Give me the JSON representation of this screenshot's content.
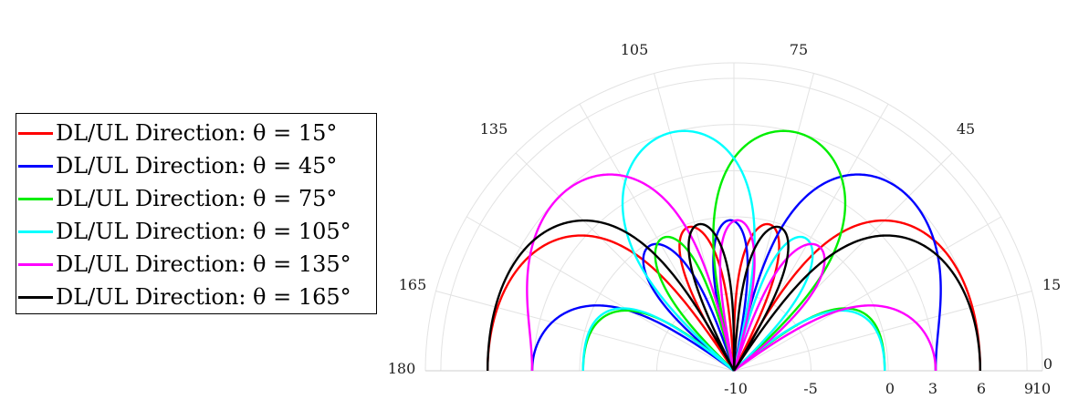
{
  "chart_data": {
    "type": "polar",
    "theta_range": [
      0,
      180
    ],
    "angle_ticks": [
      "0",
      "15",
      "45",
      "75",
      "105",
      "135",
      "165",
      "180"
    ],
    "radial_tick_labels": [
      "-10",
      "-5",
      "0",
      "3",
      "6",
      "9",
      "10"
    ],
    "radial_range": [
      -10,
      10
    ],
    "grid": true,
    "legend_position": "left",
    "series": [
      {
        "name": "DL/UL Direction: θ = 15°",
        "steer_deg": 15,
        "color": "#ff0000",
        "peak": 6,
        "width": 0.85
      },
      {
        "name": "DL/UL Direction: θ = 45°",
        "steer_deg": 45,
        "color": "#0000ff",
        "peak": 6,
        "width": 0.6
      },
      {
        "name": "DL/UL Direction: θ = 75°",
        "steer_deg": 75,
        "color": "#00ee00",
        "peak": 6,
        "width": 0.55
      },
      {
        "name": "DL/UL Direction: θ = 105°",
        "steer_deg": 105,
        "color": "#00ffff",
        "peak": 6,
        "width": 0.55
      },
      {
        "name": "DL/UL Direction: θ = 135°",
        "steer_deg": 135,
        "color": "#ff00ff",
        "peak": 6,
        "width": 0.6
      },
      {
        "name": "DL/UL Direction: θ = 165°",
        "steer_deg": 165,
        "color": "#000000",
        "peak": 6,
        "width": 0.85
      }
    ]
  },
  "legend": {
    "items": [
      {
        "label": "DL/UL Direction: θ = 15°",
        "color": "#ff0000"
      },
      {
        "label": "DL/UL Direction: θ = 45°",
        "color": "#0000ff"
      },
      {
        "label": "DL/UL Direction: θ = 75°",
        "color": "#00ee00"
      },
      {
        "label": "DL/UL Direction: θ = 105°",
        "color": "#00ffff"
      },
      {
        "label": "DL/UL Direction: θ = 135°",
        "color": "#ff00ff"
      },
      {
        "label": "DL/UL Direction: θ = 165°",
        "color": "#000000"
      }
    ]
  }
}
